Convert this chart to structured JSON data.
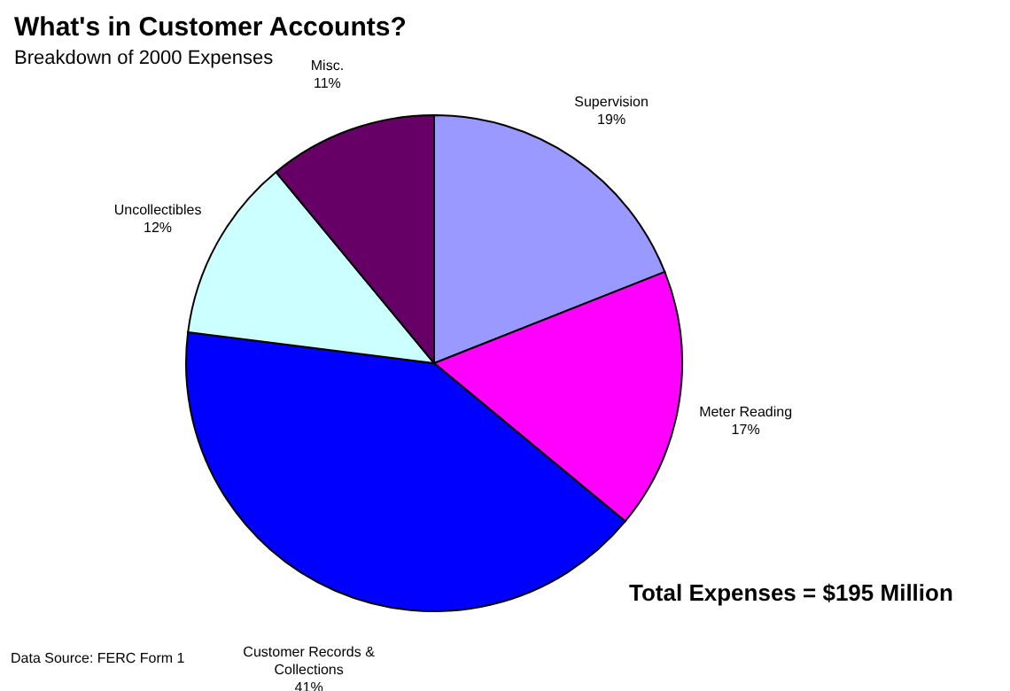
{
  "chart_data": {
    "type": "pie",
    "title": "What's in Customer Accounts?",
    "subtitle": "Breakdown of 2000 Expenses",
    "categories": [
      "Supervision",
      "Meter Reading",
      "Customer Records & Collections",
      "Uncollectibles",
      "Misc."
    ],
    "values": [
      19,
      17,
      41,
      12,
      11
    ],
    "value_labels": [
      "19%",
      "17%",
      "41%",
      "12%",
      "11%"
    ],
    "colors": [
      "#9999ff",
      "#ff00ff",
      "#0000ff",
      "#ccffff",
      "#660066"
    ],
    "annotations": [
      "Total Expenses = $195 Million",
      "Data Source: FERC Form 1"
    ]
  }
}
